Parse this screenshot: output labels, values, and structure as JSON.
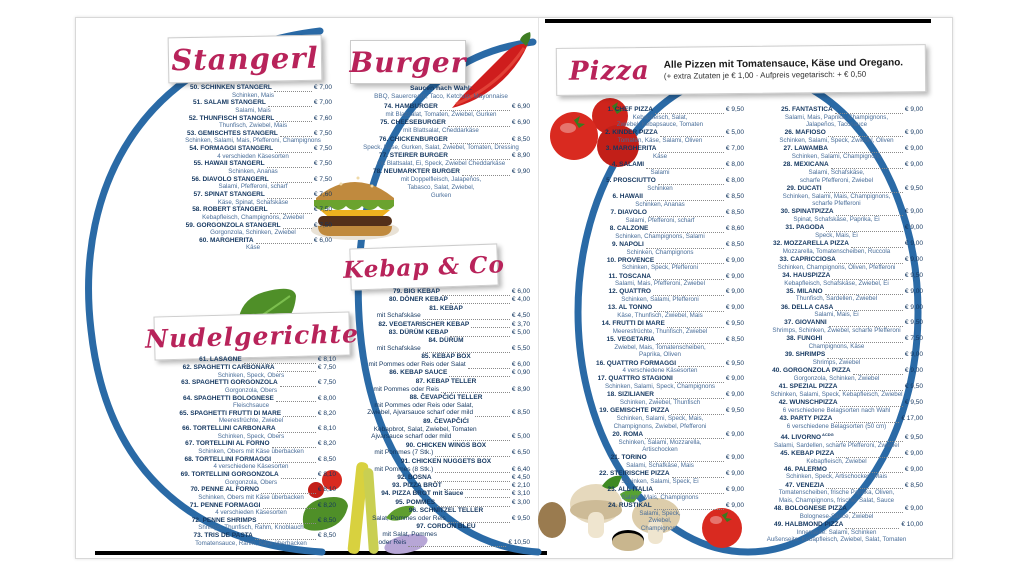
{
  "colors": {
    "arc_blue": "#2a6aa6",
    "header_red": "#b8235a",
    "name_navy": "#13365f",
    "desc_blue": "#486d99"
  },
  "headers": {
    "stangerl": "Stangerl",
    "burger": "Burger",
    "kebap": "Kebap & Co",
    "nudel": "Nudelgerichte",
    "pizza": "Pizza",
    "pizza_note_bold": "Alle Pizzen mit Tomatensauce, Käse und Oregano.",
    "pizza_note_small": "(+ extra Zutaten je € 1,00  ·  Aufpreis vegetarisch: + € 0,50"
  },
  "burger_sauces": {
    "label": "Saucen nach Wahl:",
    "value": "BBQ, Sauercream, Taco, Ketchup, Mayonnaise"
  },
  "sections": {
    "stangerl": [
      {
        "num": "50.",
        "name": "SCHINKEN STANGERL",
        "price": "€ 7,00",
        "desc": "Schinken, Mais"
      },
      {
        "num": "51.",
        "name": "SALAMI STANGERL",
        "price": "€ 7,00",
        "desc": "Salami, Mais"
      },
      {
        "num": "52.",
        "name": "THUNFISCH STANGERL",
        "price": "€ 7,60",
        "desc": "Thunfisch, Zwiebel, Mais"
      },
      {
        "num": "53.",
        "name": "GEMISCHTES STANGERL",
        "price": "€ 7,50",
        "desc": "Schinken, Salami, Mais, Pfefferoni, Champignons"
      },
      {
        "num": "54.",
        "name": "FORMAGGI STANGERL",
        "price": "€ 7,50",
        "desc": "4 verschieden Käsesorten"
      },
      {
        "num": "55.",
        "name": "HAWAII STANGERL",
        "price": "€ 7,50",
        "desc": "Schinken, Ananas"
      },
      {
        "num": "56.",
        "name": "DIAVOLO STANGERL",
        "price": "€ 7,50",
        "desc": "Salami, Pfefferoni, scharf"
      },
      {
        "num": "57.",
        "name": "SPINAT STANGERL",
        "price": "€ 7,60",
        "desc": "Käse, Spinat, Schafskäse"
      },
      {
        "num": "58.",
        "name": "ROBERT STANGERL",
        "price": "€ 7,50",
        "desc": "Kebapfleisch, Champignons, Zwiebel"
      },
      {
        "num": "59.",
        "name": "GORGONZOLA STANGERL",
        "price": "€ 7,50",
        "desc": "Gorgonzola, Schinken, Zwiebel"
      },
      {
        "num": "60.",
        "name": "MARGHERITA",
        "price": "€ 6,00",
        "desc": "Käse"
      }
    ],
    "nudel": [
      {
        "num": "61.",
        "name": "LASAGNE",
        "price": "€ 8,10"
      },
      {
        "num": "62.",
        "name": "SPAGHETTI CARBONARA",
        "price": "€ 7,50",
        "desc": "Schinken, Speck, Obers"
      },
      {
        "num": "63.",
        "name": "SPAGHETTI GORGONZOLA",
        "price": "€ 7,50",
        "desc": "Gorgonzola, Obers"
      },
      {
        "num": "64.",
        "name": "SPAGHETTI BOLOGNESE",
        "price": "€ 8,00",
        "desc": "Fleischsauce"
      },
      {
        "num": "65.",
        "name": "SPAGHETTI FRUTTI DI MARE",
        "price": "€ 8,20",
        "desc": "Meeresfrüchte, Zwiebel"
      },
      {
        "num": "66.",
        "name": "TORTELLINI CARBONARA",
        "price": "€ 8,10",
        "desc": "Schinken, Speck, Obers"
      },
      {
        "num": "67.",
        "name": "TORTELLINI AL FORNO",
        "price": "€ 8,20",
        "desc": "Schinken, Obers mit Käse überbacken"
      },
      {
        "num": "68.",
        "name": "TORTELLINI FORMAGGI",
        "price": "€ 8,50",
        "desc": "4 verschiedene Käsesorten"
      },
      {
        "num": "69.",
        "name": "TORTELLINI GORGONZOLA",
        "price": "€ 8,10",
        "desc": "Gorgonzola, Obers"
      },
      {
        "num": "70.",
        "name": "PENNE AL FORNO",
        "price": "€ 8,10",
        "desc": "Schinken, Obers mit Käse überbacken"
      },
      {
        "num": "71.",
        "name": "PENNE FORMAGGI",
        "price": "€ 8,20",
        "desc": "4 verschieden Käsesorten"
      },
      {
        "num": "72.",
        "name": "PENNE SHRIMPS",
        "price": "€ 8,50",
        "desc": "Shrimps, Thunfisch, Rahm, Knoblauch"
      },
      {
        "num": "73.",
        "name": "TRIS DE PASTA",
        "price": "€ 8,50",
        "desc": "Tomatensauce, Rahm, Käse überbacken"
      }
    ],
    "burger": [
      {
        "num": "74.",
        "name": "HAMBURGER",
        "price": "€ 6,90",
        "desc": "mit Blattsalat, Tomaten, Zwiebel, Gurken"
      },
      {
        "num": "75.",
        "name": "CHEESEBURGER",
        "price": "€ 6,90",
        "desc": "mit Blattsalat, Cheddarkäse"
      },
      {
        "num": "76.",
        "name": "CHICKENBURGER",
        "price": "€ 8,50",
        "desc": "Speck, Käse, Gurken, Salat, Zwiebel, Tomaten, Dressing"
      },
      {
        "num": "77.",
        "name": "STEIRER BURGER",
        "price": "€ 8,90",
        "desc": "mit Blattsalat, Ei, Speck, Zwiebel Cheddarkäse"
      },
      {
        "num": "78.",
        "name": "NEUMARKTER BURGER",
        "price": "€ 9,90",
        "desc": [
          "mit Doppelfleisch, Jalapeños,",
          "Tabasco, Salat, Zwiebel,",
          "Gurken"
        ]
      }
    ],
    "kebap": [
      {
        "num": "79.",
        "name": "BIG KEBAP",
        "price": "€ 6,00"
      },
      {
        "num": "80.",
        "name": "DÖNER KEBAP",
        "price": "€ 4,00"
      },
      {
        "num": "81.",
        "name": "KEBAP",
        "sub": [
          {
            "text": "mit Schafskäse",
            "price": "€ 4,50"
          }
        ]
      },
      {
        "num": "82.",
        "name": "VEGETARISCHER KEBAP",
        "price": "€ 3,70"
      },
      {
        "num": "83.",
        "name": "DÜRÜM KEBAP",
        "price": "€ 5,00"
      },
      {
        "num": "84.",
        "name": "DÜRÜM",
        "sub": [
          {
            "text": "mit Schafskäse",
            "price": "€ 5,50"
          }
        ]
      },
      {
        "num": "85.",
        "name": "KEBAP BOX",
        "sub": [
          {
            "text": "mit Pommes oder Reis oder Salat",
            "price": "€ 6,00"
          }
        ]
      },
      {
        "num": "86.",
        "name": "KEBAP SAUCE",
        "price": "€ 0,90"
      },
      {
        "num": "87.",
        "name": "KEBAP TELLER",
        "sub": [
          {
            "text": "mit Pommes oder Reis",
            "price": "€ 8,90"
          }
        ]
      },
      {
        "num": "88.",
        "name": "ČEVAPČIĆI TELLER",
        "sub": [
          {
            "text": "mit Pommes oder Reis oder Salat,"
          },
          {
            "text": "Zwiebel, Ajvarsauce scharf oder mild",
            "price": "€ 8,50"
          }
        ]
      },
      {
        "num": "89.",
        "name": "ČEVAPČIĆI",
        "sub": [
          {
            "text": "Kebapbrot, Salat, Zwiebel, Tomaten"
          },
          {
            "text": "Ajvarsauce scharf oder mild",
            "price": "€ 5,00"
          }
        ]
      },
      {
        "num": "90.",
        "name": "CHICKEN WINGS BOX",
        "sub": [
          {
            "text": "mit Pommes (7 Stk.)",
            "price": "€ 6,50"
          }
        ]
      },
      {
        "num": "91.",
        "name": "CHICKEN NUGGETS BOX",
        "sub": [
          {
            "text": "mit Pommes (8 Stk.)",
            "price": "€ 6,40"
          }
        ]
      },
      {
        "num": "92.",
        "name": "BOSNA",
        "price": "€ 4,50"
      },
      {
        "num": "93.",
        "name": "PIZZA BROT",
        "price": "€ 2,10"
      },
      {
        "num": "94.",
        "name": "PIZZA BROT mit Sauce",
        "price": "€ 3,10"
      },
      {
        "num": "95.",
        "name": "POMMES",
        "price": "€ 3,00"
      },
      {
        "num": "96.",
        "name": "SCHNITZEL TELLER",
        "sub": [
          {
            "text": "Salat, Pommes oder Reis",
            "price": "€ 9,50"
          }
        ]
      },
      {
        "num": "97.",
        "name": "CORDON BLEU",
        "sub": [
          {
            "text": "mit Salat, Pommes"
          },
          {
            "text": "oder Reis",
            "price": "€ 10,50"
          }
        ]
      }
    ],
    "pizza_a": [
      {
        "num": "1.",
        "name": "CHEF PIZZA",
        "price": "€ 9,50",
        "desc": [
          "Kebapfleisch, Salat,",
          "Zwiebel, Kebapsauce, Tomaten"
        ]
      },
      {
        "num": "2.",
        "name": "KINDER PIZZA",
        "price": "€ 5,00",
        "desc": "Tomaten, Käse, Salami, Oliven"
      },
      {
        "num": "3.",
        "name": "MARGHERITA",
        "price": "€ 7,00",
        "desc": "Käse"
      },
      {
        "num": "4.",
        "name": "SALAMI",
        "price": "€ 8,00",
        "desc": "Salami"
      },
      {
        "num": "5.",
        "name": "PROSCIUTTO",
        "price": "€ 8,00",
        "desc": "Schinken"
      },
      {
        "num": "6.",
        "name": "HAWAII",
        "price": "€ 8,50",
        "desc": "Schinken, Ananas"
      },
      {
        "num": "7.",
        "name": "DIAVOLO",
        "price": "€ 8,50",
        "desc": "Salami, Pfefferoni, scharf"
      },
      {
        "num": "8.",
        "name": "CALZONE",
        "price": "€ 8,60",
        "desc": "Schinken, Champignons, Salami"
      },
      {
        "num": "9.",
        "name": "NAPOLI",
        "price": "€ 8,50",
        "desc": "Schinken, Champignons"
      },
      {
        "num": "10.",
        "name": "PROVENCE",
        "price": "€ 9,00",
        "desc": "Schinken, Speck, Pfefferoni"
      },
      {
        "num": "11.",
        "name": "TOSCANA",
        "price": "€ 9,00",
        "desc": "Salami, Mais, Pfefferoni, Zwiebel"
      },
      {
        "num": "12.",
        "name": "QUATTRO",
        "price": "€ 9,00",
        "desc": "Schinken, Salami, Pfefferoni"
      },
      {
        "num": "13.",
        "name": "AL TONNO",
        "price": "€ 9,00",
        "desc": "Käse, Thunfisch, Zwiebel, Mais"
      },
      {
        "num": "14.",
        "name": "FRUTTI DI MARE",
        "price": "€ 9,50",
        "desc": "Meeresfrüchte, Thunfisch, Zwiebel"
      },
      {
        "num": "15.",
        "name": "VEGETARIA",
        "price": "€ 8,50",
        "desc": [
          "Zwiebel, Mais, Tomatenscheiben,",
          "Paprika, Oliven"
        ]
      },
      {
        "num": "16.",
        "name": "QUATTRO FORMAGGI",
        "price": "€ 9,50",
        "desc": "4 verschiedene Käsesorten"
      },
      {
        "num": "17.",
        "name": "QUATTRO STAGIONI",
        "price": "€ 9,00",
        "desc": "Schinken, Salami, Speck, Champignons"
      },
      {
        "num": "18.",
        "name": "SIZILIANER",
        "price": "€ 9,00",
        "desc": "Schinken, Zwiebel, Thunfisch"
      },
      {
        "num": "19.",
        "name": "GEMISCHTE PIZZA",
        "price": "€ 9,50",
        "desc": [
          "Schinken, Salami, Speck, Mais,",
          "Champignons, Zwiebel, Pfefferoni"
        ]
      },
      {
        "num": "20.",
        "name": "ROMA",
        "price": "€ 9,00",
        "desc": [
          "Schinken, Salami, Mozzarella,",
          "Artischocken"
        ]
      },
      {
        "num": "21.",
        "name": "TORINO",
        "price": "€ 9,00",
        "desc": "Salami, Schafkäse, Mais"
      },
      {
        "num": "22.",
        "name": "STEIRISCHE PIZZA",
        "price": "€ 9,00",
        "desc": "Schinken, Salami, Speck, Ei"
      },
      {
        "num": "23.",
        "name": "ALL ITALIA",
        "price": "€ 9,00",
        "desc": "Salami, Mais, Champignons"
      },
      {
        "num": "24.",
        "name": "RUSTIKAL",
        "price": "€ 9,00",
        "desc": [
          "Salami, Speck,",
          "Zwiebel,",
          "Champignons"
        ]
      }
    ],
    "pizza_b": [
      {
        "num": "25.",
        "name": "FANTASTICA",
        "price": "€ 9,00",
        "desc": [
          "Salami, Mais, Paprika, Champignons,",
          "Jalapeños, Tacosauce"
        ]
      },
      {
        "num": "26.",
        "name": "MAFIOSO",
        "price": "€ 9,00",
        "desc": "Schinken, Salami, Speck, Zwiebel, Oliven"
      },
      {
        "num": "27.",
        "name": "LAWAMBA",
        "price": "€ 9,00",
        "desc": "Schinken, Salami, Champignons"
      },
      {
        "num": "28.",
        "name": "MEXICANA",
        "price": "€ 9,00",
        "desc": [
          "Salami, Schafskäse,",
          "scharfe Pfefferoni, Zwiebel"
        ]
      },
      {
        "num": "29.",
        "name": "DUCATI",
        "price": "€ 9,50",
        "desc": [
          "Schinken, Salami, Mais, Champignons,",
          "scharfe Pfefferoni"
        ]
      },
      {
        "num": "30.",
        "name": "SPINATPIZZA",
        "price": "€ 9,00",
        "desc": "Spinat, Schafskäse, Paprika, Ei"
      },
      {
        "num": "31.",
        "name": "PAGODA",
        "price": "€ 9,00",
        "desc": "Speck, Mais, Ei"
      },
      {
        "num": "32.",
        "name": "MOZZARELLA PIZZA",
        "price": "€ 9,00",
        "desc": "Mozzarella, Tomatenscheiben, Ruccola"
      },
      {
        "num": "33.",
        "name": "CAPRICCIOSA",
        "price": "€ 9,00",
        "desc": "Schinken, Champignons, Oliven, Pfefferoni"
      },
      {
        "num": "34.",
        "name": "HAUSPIZZA",
        "price": "€ 9,50",
        "desc": "Kebapfleisch, Schafskäse, Zwiebel, Ei"
      },
      {
        "num": "35.",
        "name": "MILANO",
        "price": "€ 9,00",
        "desc": "Thunfisch, Sardellen, Zwiebel"
      },
      {
        "num": "36.",
        "name": "DELLA CASA",
        "price": "€ 9,00",
        "desc": "Salami, Mais, Ei"
      },
      {
        "num": "37.",
        "name": "GIOVANNI",
        "price": "€ 9,50",
        "desc": "Shrimps, Schinken, Zwiebel, scharfe Pfefferoni"
      },
      {
        "num": "38.",
        "name": "FUNGHI",
        "price": "€ 7,50",
        "desc": "Champignons, Käse"
      },
      {
        "num": "39.",
        "name": "SHRIMPS",
        "price": "€ 9,00",
        "desc": "Shrimps, Zwiebel"
      },
      {
        "num": "40.",
        "name": "GORGONZOLA PIZZA",
        "price": "€ 9,00",
        "desc": "Gorgonzola, Schinken, Zwiebel"
      },
      {
        "num": "41.",
        "name": "SPEZIAL PIZZA",
        "price": "€ 9,50",
        "desc": "Schinken, Salami, Speck, Kebapfleisch, Zwiebel"
      },
      {
        "num": "42.",
        "name": "WUNSCHPIZZA",
        "price": "€ 9,50",
        "desc": "6 verschiedene Belagsorten nach Wahl"
      },
      {
        "num": "43.",
        "name": "PARTY PIZZA",
        "price": "€ 17,00",
        "desc": "6 verschiedene Belagsorten (50 cm)"
      },
      {
        "num": "44.",
        "name": "LIVORNO",
        "code": "ACDG",
        "price": "€ 9,50",
        "desc": "Salami, Sardellen, scharfe Pfefferoni, Zwiebel"
      },
      {
        "num": "45.",
        "name": "KEBAP PIZZA",
        "price": "€ 9,00",
        "desc": "Kebapfleisch, Zwiebel"
      },
      {
        "num": "46.",
        "name": "PALERMO",
        "price": "€ 9,00",
        "desc": "Schinken, Speck, Artischocken, Mais"
      },
      {
        "num": "47.",
        "name": "VENEZIA",
        "price": "€ 8,50",
        "desc": [
          "Tomatenscheiben, frische Paprika, Oliven,",
          "Mais, Champignons, frischer Salat, Sauce"
        ]
      },
      {
        "num": "48.",
        "name": "BOLOGNESE PIZZA",
        "price": "€ 9,00",
        "desc": "Bolognese-Sauce, Zwiebel"
      },
      {
        "num": "49.",
        "name": "HALBMOND PIZZA",
        "price": "€ 10,00",
        "desc": [
          "Innenseite: Salami, Schinken",
          "Außenseite: Kebapfleisch, Zwiebel, Salat, Tomaten"
        ]
      }
    ]
  }
}
